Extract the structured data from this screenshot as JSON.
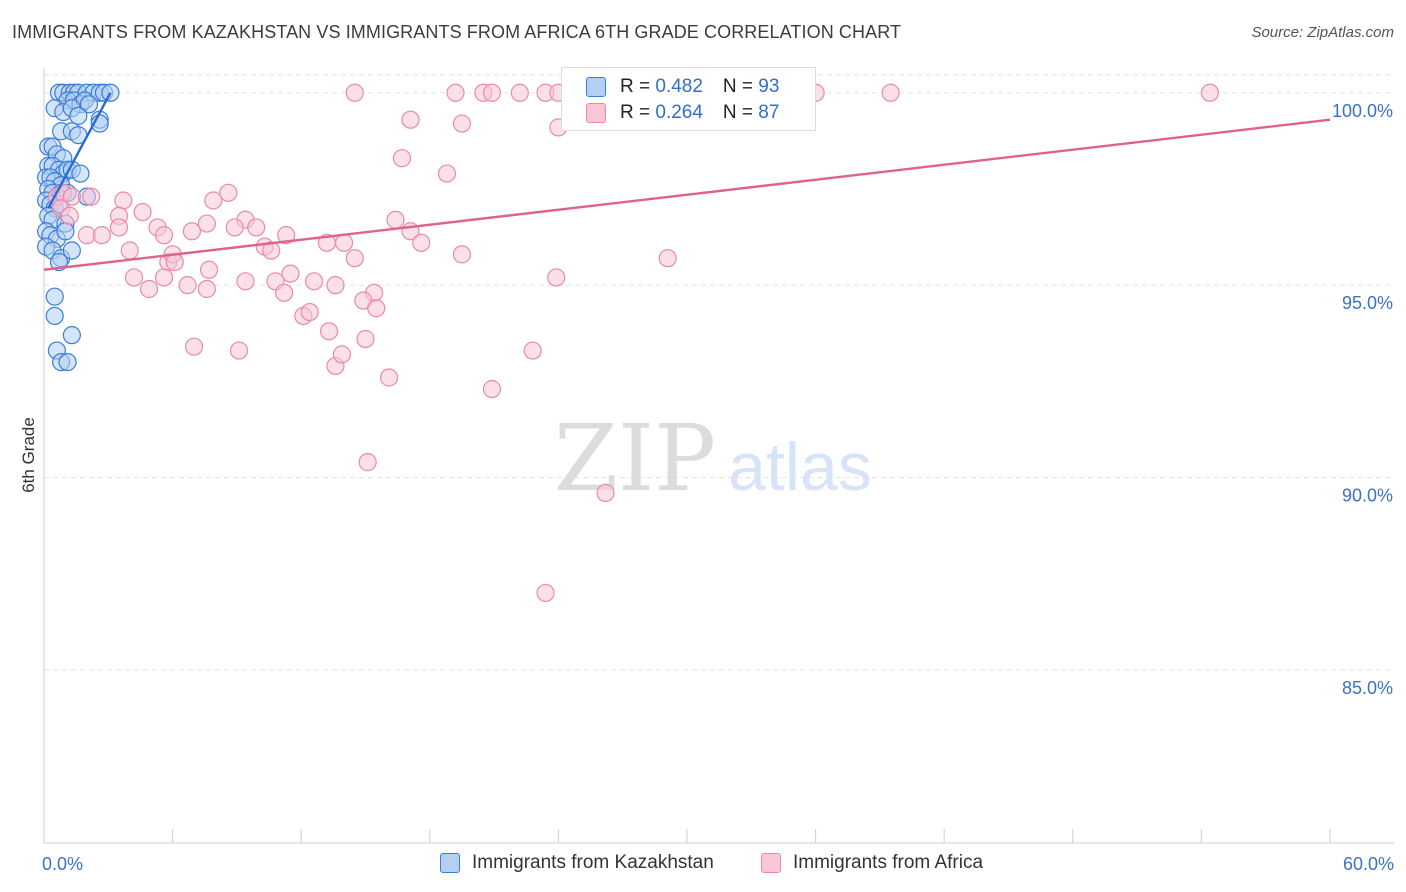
{
  "title": "IMMIGRANTS FROM KAZAKHSTAN VS IMMIGRANTS FROM AFRICA 6TH GRADE CORRELATION CHART",
  "source": "Source: ZipAtlas.com",
  "watermark": {
    "zip": "ZIP",
    "atlas": "atlas"
  },
  "colors": {
    "blue_fill": "#b3cff2",
    "blue_stroke": "#3b7dd8",
    "blue_line": "#2b6bd1",
    "pink_fill": "#f8c6d6",
    "pink_stroke": "#e98aa9",
    "pink_line": "#e0628c",
    "tick_label": "#3a72c8",
    "grid": "#e4e4e4"
  },
  "inset": {
    "rows": [
      {
        "r_label": "R = ",
        "r_value": "0.482",
        "n_label": "N = ",
        "n_value": "93"
      },
      {
        "r_label": "R = ",
        "r_value": "0.264",
        "n_label": "N = ",
        "n_value": "87"
      }
    ]
  },
  "legend": [
    {
      "label": "Immigrants from Kazakhstan"
    },
    {
      "label": "Immigrants from Africa"
    }
  ],
  "chart_data": {
    "type": "scatter",
    "title": "IMMIGRANTS FROM KAZAKHSTAN VS IMMIGRANTS FROM AFRICA 6TH GRADE CORRELATION CHART",
    "xlabel": "",
    "ylabel": "6th Grade",
    "xlim": [
      0,
      60
    ],
    "ylim": [
      80.5,
      100.8
    ],
    "x_tick_labels": [
      {
        "value": 0,
        "label": "0.0%"
      },
      {
        "value": 60,
        "label": "60.0%"
      }
    ],
    "x_minor_ticks": [
      0,
      6,
      12,
      18,
      24,
      30,
      36,
      42,
      48,
      54,
      60
    ],
    "y_ticks": [
      {
        "value": 100,
        "label": "100.0%"
      },
      {
        "value": 95,
        "label": "95.0%"
      },
      {
        "value": 90,
        "label": "90.0%"
      },
      {
        "value": 85,
        "label": "85.0%"
      }
    ],
    "series": [
      {
        "name": "Immigrants from Kazakhstan",
        "color": "blue",
        "trend": {
          "x": [
            0.2,
            3.1
          ],
          "y": [
            97.0,
            100.0
          ]
        },
        "points": [
          [
            0.7,
            100
          ],
          [
            0.9,
            100
          ],
          [
            1.2,
            100
          ],
          [
            1.4,
            100
          ],
          [
            1.6,
            100
          ],
          [
            2.0,
            100
          ],
          [
            2.3,
            100
          ],
          [
            2.6,
            100
          ],
          [
            2.8,
            100
          ],
          [
            3.1,
            100
          ],
          [
            1.1,
            99.8
          ],
          [
            1.4,
            99.8
          ],
          [
            1.7,
            99.7
          ],
          [
            1.9,
            99.8
          ],
          [
            2.1,
            99.7
          ],
          [
            0.5,
            99.6
          ],
          [
            0.9,
            99.5
          ],
          [
            1.3,
            99.6
          ],
          [
            1.6,
            99.4
          ],
          [
            2.6,
            99.3
          ],
          [
            0.8,
            99.0
          ],
          [
            1.3,
            99.0
          ],
          [
            1.6,
            98.9
          ],
          [
            2.6,
            99.2
          ],
          [
            0.2,
            98.6
          ],
          [
            0.4,
            98.6
          ],
          [
            0.6,
            98.4
          ],
          [
            0.9,
            98.3
          ],
          [
            0.2,
            98.1
          ],
          [
            0.4,
            98.1
          ],
          [
            0.7,
            98.0
          ],
          [
            0.9,
            97.9
          ],
          [
            1.1,
            98.0
          ],
          [
            1.3,
            98.0
          ],
          [
            1.7,
            97.9
          ],
          [
            0.1,
            97.8
          ],
          [
            0.3,
            97.8
          ],
          [
            0.5,
            97.7
          ],
          [
            0.8,
            97.6
          ],
          [
            0.2,
            97.5
          ],
          [
            0.4,
            97.4
          ],
          [
            0.6,
            97.3
          ],
          [
            0.8,
            97.4
          ],
          [
            1.1,
            97.4
          ],
          [
            2.0,
            97.3
          ],
          [
            0.1,
            97.2
          ],
          [
            0.3,
            97.1
          ],
          [
            0.5,
            97.0
          ],
          [
            0.7,
            97.1
          ],
          [
            0.2,
            96.8
          ],
          [
            0.4,
            96.7
          ],
          [
            1.0,
            96.6
          ],
          [
            0.1,
            96.4
          ],
          [
            0.3,
            96.3
          ],
          [
            0.6,
            96.2
          ],
          [
            1.0,
            96.4
          ],
          [
            0.1,
            96.0
          ],
          [
            0.4,
            95.9
          ],
          [
            0.8,
            95.7
          ],
          [
            1.3,
            95.9
          ],
          [
            0.7,
            95.6
          ],
          [
            0.5,
            94.7
          ],
          [
            0.5,
            94.2
          ],
          [
            1.3,
            93.7
          ],
          [
            0.6,
            93.3
          ],
          [
            0.8,
            93.0
          ],
          [
            1.1,
            93.0
          ]
        ]
      },
      {
        "name": "Immigrants from Africa",
        "color": "pink",
        "trend": {
          "x": [
            0,
            60
          ],
          "y": [
            95.4,
            99.3
          ]
        },
        "points": [
          [
            14.5,
            100
          ],
          [
            19.2,
            100
          ],
          [
            20.5,
            100
          ],
          [
            20.9,
            100
          ],
          [
            22.2,
            100
          ],
          [
            23.4,
            100
          ],
          [
            24.0,
            100
          ],
          [
            26.6,
            100
          ],
          [
            28.4,
            100
          ],
          [
            32.1,
            100
          ],
          [
            33.3,
            100
          ],
          [
            36.0,
            100
          ],
          [
            39.5,
            100
          ],
          [
            54.4,
            100
          ],
          [
            17.1,
            99.3
          ],
          [
            19.5,
            99.2
          ],
          [
            24.0,
            99.1
          ],
          [
            16.7,
            98.3
          ],
          [
            18.8,
            97.9
          ],
          [
            0.6,
            97.3
          ],
          [
            0.9,
            97.4
          ],
          [
            1.3,
            97.3
          ],
          [
            2.2,
            97.3
          ],
          [
            3.7,
            97.2
          ],
          [
            7.9,
            97.2
          ],
          [
            8.6,
            97.4
          ],
          [
            0.8,
            97.0
          ],
          [
            1.2,
            96.8
          ],
          [
            3.5,
            96.8
          ],
          [
            4.6,
            96.9
          ],
          [
            5.3,
            96.5
          ],
          [
            9.4,
            96.7
          ],
          [
            16.4,
            96.7
          ],
          [
            2.0,
            96.3
          ],
          [
            2.7,
            96.3
          ],
          [
            3.5,
            96.5
          ],
          [
            5.6,
            96.3
          ],
          [
            6.9,
            96.4
          ],
          [
            7.6,
            96.6
          ],
          [
            8.9,
            96.5
          ],
          [
            9.9,
            96.5
          ],
          [
            11.3,
            96.3
          ],
          [
            13.2,
            96.1
          ],
          [
            14.0,
            96.1
          ],
          [
            17.1,
            96.4
          ],
          [
            17.6,
            96.1
          ],
          [
            4.0,
            95.9
          ],
          [
            5.8,
            95.6
          ],
          [
            6.0,
            95.8
          ],
          [
            6.1,
            95.6
          ],
          [
            10.3,
            96.0
          ],
          [
            10.6,
            95.9
          ],
          [
            14.5,
            95.7
          ],
          [
            19.5,
            95.8
          ],
          [
            29.1,
            95.7
          ],
          [
            4.2,
            95.2
          ],
          [
            4.9,
            94.9
          ],
          [
            5.6,
            95.2
          ],
          [
            6.7,
            95.0
          ],
          [
            7.6,
            94.9
          ],
          [
            7.7,
            95.4
          ],
          [
            9.4,
            95.1
          ],
          [
            10.8,
            95.1
          ],
          [
            11.2,
            94.8
          ],
          [
            11.5,
            95.3
          ],
          [
            12.6,
            95.1
          ],
          [
            13.6,
            95.0
          ],
          [
            15.4,
            94.8
          ],
          [
            23.9,
            95.2
          ],
          [
            12.1,
            94.2
          ],
          [
            12.4,
            94.3
          ],
          [
            14.9,
            94.6
          ],
          [
            15.5,
            94.4
          ],
          [
            7.0,
            93.4
          ],
          [
            9.1,
            93.3
          ],
          [
            13.3,
            93.8
          ],
          [
            13.6,
            92.9
          ],
          [
            13.9,
            93.2
          ],
          [
            15.0,
            93.6
          ],
          [
            22.8,
            93.3
          ],
          [
            16.1,
            92.6
          ],
          [
            20.9,
            92.3
          ],
          [
            15.1,
            90.4
          ],
          [
            26.2,
            89.6
          ],
          [
            23.4,
            87.0
          ]
        ]
      }
    ]
  }
}
